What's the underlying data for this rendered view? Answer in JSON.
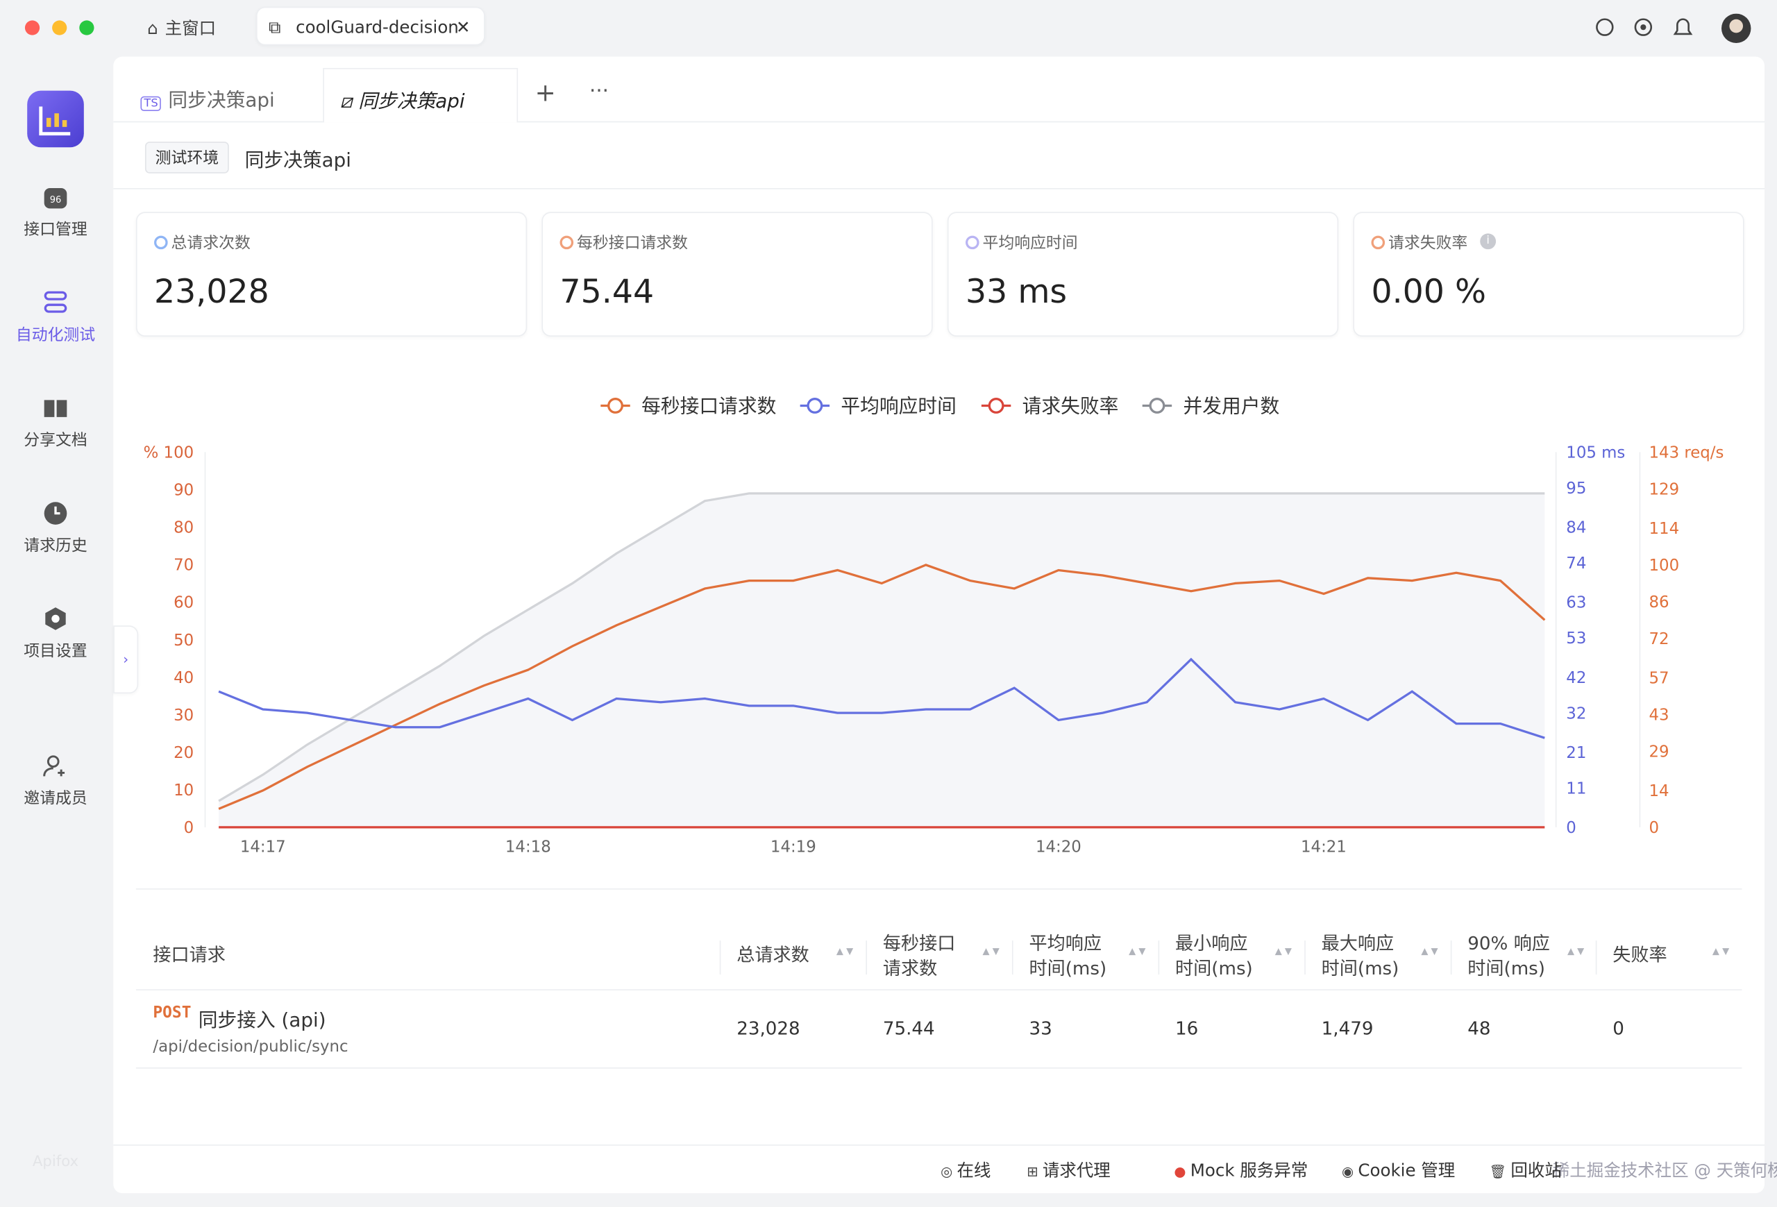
{
  "window": {
    "tabs": [
      "主窗口",
      "coolGuard-decision"
    ]
  },
  "sidebar": {
    "items": [
      "接口管理",
      "自动化测试",
      "分享文档",
      "请求历史",
      "项目设置",
      "邀请成员"
    ],
    "logo": "Apifox"
  },
  "tabs": [
    "同步决策api",
    "同步决策api"
  ],
  "breadcrumb": {
    "env": "测试环境",
    "name": "同步决策api"
  },
  "stats": [
    {
      "label": "总请求次数",
      "value": "23,028"
    },
    {
      "label": "每秒接口请求数",
      "value": "75.44"
    },
    {
      "label": "平均响应时间",
      "value": "33 ms"
    },
    {
      "label": "请求失败率",
      "value": "0.00 %"
    }
  ],
  "chart": {
    "type": "line",
    "categories": [
      null,
      "14:17",
      null,
      null,
      null,
      null,
      null,
      "14:18",
      null,
      null,
      null,
      null,
      null,
      "14:19",
      null,
      null,
      null,
      null,
      null,
      "14:20",
      null,
      null,
      null,
      null,
      null,
      "14:21",
      null,
      null,
      null,
      null,
      null
    ],
    "ylim": [
      0,
      100
    ],
    "yticks": [
      0,
      10,
      20,
      30,
      40,
      50,
      60,
      70,
      80,
      90,
      {
        "value": 100,
        "label": "% 100"
      }
    ],
    "y2lim": [
      0,
      105
    ],
    "y2ticks": [
      0,
      11,
      21,
      32,
      42,
      53,
      63,
      74,
      84,
      95,
      {
        "value": 105,
        "label": "105 ms"
      }
    ],
    "y3lim": [
      0,
      143
    ],
    "y3ticks": [
      0,
      14,
      29,
      43,
      57,
      72,
      86,
      100,
      114,
      129,
      {
        "value": 143,
        "label": "143 req/s"
      }
    ],
    "series": [
      {
        "name": "每秒接口请求数",
        "color": "#e0703a",
        "axis": "y3",
        "values": [
          7,
          14,
          23,
          31,
          39,
          47,
          54,
          60,
          69,
          77,
          84,
          91,
          94,
          94,
          98,
          93,
          100,
          94,
          91,
          98,
          96,
          93,
          90,
          93,
          94,
          89,
          95,
          94,
          97,
          94,
          79
        ]
      },
      {
        "name": "平均响应时间",
        "color": "#6470e0",
        "axis": "y2",
        "values": [
          38,
          33,
          32,
          30,
          28,
          28,
          32,
          36,
          30,
          36,
          35,
          36,
          34,
          34,
          32,
          32,
          33,
          33,
          39,
          30,
          32,
          35,
          47,
          35,
          33,
          36,
          30,
          38,
          29,
          29,
          25
        ]
      },
      {
        "name": "请求失败率",
        "color": "#d9453a",
        "axis": "y",
        "values": [
          0,
          0,
          0,
          0,
          0,
          0,
          0,
          0,
          0,
          0,
          0,
          0,
          0,
          0,
          0,
          0,
          0,
          0,
          0,
          0,
          0,
          0,
          0,
          0,
          0,
          0,
          0,
          0,
          0,
          0,
          0
        ]
      },
      {
        "name": "并发用户数",
        "color": "#8a8d94",
        "axis": "y",
        "values": [
          7,
          14,
          22,
          29,
          36,
          43,
          51,
          58,
          65,
          73,
          80,
          87,
          89,
          89,
          89,
          89,
          89,
          89,
          89,
          89,
          89,
          89,
          89,
          89,
          89,
          89,
          89,
          89,
          89,
          89,
          89
        ]
      }
    ]
  },
  "table": {
    "headers": [
      "接口请求",
      "总请求数",
      "每秒接口\n请求数",
      "平均响应\n时间(ms)",
      "最小响应\n时间(ms)",
      "最大响应\n时间(ms)",
      "90% 响应\n时间(ms)",
      "失败率"
    ],
    "rows": [
      {
        "method": "POST",
        "name": "同步接入 (api)",
        "path": "/api/decision/public/sync",
        "cells": [
          "23,028",
          "75.44",
          "33",
          "16",
          "1,479",
          "48",
          "0"
        ]
      }
    ]
  },
  "footer": [
    "在线",
    "请求代理",
    "Mock 服务异常",
    "Cookie 管理",
    "回收站"
  ],
  "watermark": "稀土掘金技术社区 @ 天策何杨"
}
